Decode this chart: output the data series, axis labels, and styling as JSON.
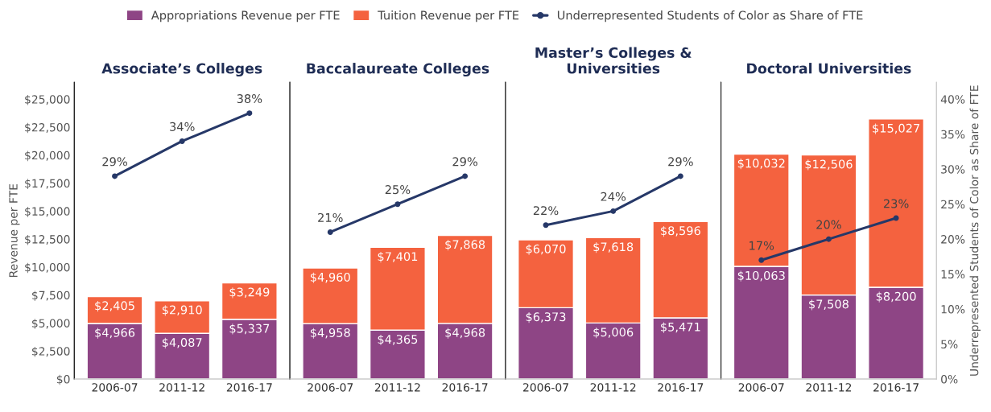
{
  "chart_data": [
    {
      "type": "bar",
      "title": "Associate’s Colleges",
      "categories": [
        "2006-07",
        "2011-12",
        "2016-17"
      ],
      "stacked": true,
      "legend": "top",
      "marker": "circle",
      "ylabel": "Revenue per FTE",
      "tick_labels": [
        "x",
        "y"
      ],
      "ylim": [
        0,
        26500
      ],
      "yticks": [
        {
          "value": 0,
          "label": "$0"
        },
        {
          "value": 2500,
          "label": "$2,500"
        },
        {
          "value": 5000,
          "label": "$5,000"
        },
        {
          "value": 7500,
          "label": "$7,500"
        },
        {
          "value": 10000,
          "label": "$10,000"
        },
        {
          "value": 12500,
          "label": "$12,500"
        },
        {
          "value": 15000,
          "label": "$15,000"
        },
        {
          "value": 17500,
          "label": "$17,500"
        },
        {
          "value": 20000,
          "label": "$20,000"
        },
        {
          "value": 22500,
          "label": "$22,500"
        },
        {
          "value": 25000,
          "label": "$25,000"
        }
      ],
      "y2lim": [
        0,
        42.4
      ],
      "series": [
        {
          "name": "Appropriations Revenue per FTE",
          "color": "#8e4585",
          "values": [
            4966,
            4087,
            5337
          ],
          "value_labels": [
            "$4,966",
            "$4,087",
            "$5,337"
          ]
        },
        {
          "name": "Tuition Revenue per FTE",
          "color": "#f4623f",
          "values": [
            2405,
            2910,
            3249
          ],
          "value_labels": [
            "$2,405",
            "$2,910",
            "$3,249"
          ]
        },
        {
          "name": "Underrepresented Students of Color as Share of FTE",
          "type": "line",
          "axis": "y2",
          "color": "#263868",
          "values": [
            29,
            34,
            38
          ],
          "value_labels": [
            "29%",
            "34%",
            "38%"
          ]
        }
      ]
    },
    {
      "type": "bar",
      "title": "Baccalaureate Colleges",
      "categories": [
        "2006-07",
        "2011-12",
        "2016-17"
      ],
      "stacked": true,
      "marker": "circle",
      "tick_labels": [
        "x"
      ],
      "ylim": [
        0,
        26500
      ],
      "y2lim": [
        0,
        42.4
      ],
      "series": [
        {
          "color": "#8e4585",
          "values": [
            4958,
            4365,
            4968
          ],
          "value_labels": [
            "$4,958",
            "$4,365",
            "$4,968"
          ]
        },
        {
          "color": "#f4623f",
          "values": [
            4960,
            7401,
            7868
          ],
          "value_labels": [
            "$4,960",
            "$7,401",
            "$7,868"
          ]
        },
        {
          "type": "line",
          "axis": "y2",
          "color": "#263868",
          "values": [
            21,
            25,
            29
          ],
          "value_labels": [
            "21%",
            "25%",
            "29%"
          ]
        }
      ]
    },
    {
      "type": "bar",
      "title": "Master’s Colleges &\nUniversities",
      "categories": [
        "2006-07",
        "2011-12",
        "2016-17"
      ],
      "stacked": true,
      "marker": "circle",
      "tick_labels": [
        "x"
      ],
      "ylim": [
        0,
        26500
      ],
      "y2lim": [
        0,
        42.4
      ],
      "series": [
        {
          "color": "#8e4585",
          "values": [
            6373,
            5006,
            5471
          ],
          "value_labels": [
            "$6,373",
            "$5,006",
            "$5,471"
          ]
        },
        {
          "color": "#f4623f",
          "values": [
            6070,
            7618,
            8596
          ],
          "value_labels": [
            "$6,070",
            "$7,618",
            "$8,596"
          ]
        },
        {
          "type": "line",
          "axis": "y2",
          "color": "#263868",
          "values": [
            22,
            24,
            29
          ],
          "value_labels": [
            "22%",
            "24%",
            "29%"
          ]
        }
      ]
    },
    {
      "type": "bar",
      "title": "Doctoral Universities",
      "categories": [
        "2006-07",
        "2011-12",
        "2016-17"
      ],
      "stacked": true,
      "marker": "circle",
      "tick_labels": [
        "x",
        "y2"
      ],
      "y2label": "Underrepresented Students of Color as Share of FTE",
      "ylim": [
        0,
        26500
      ],
      "y2lim": [
        0,
        42.4
      ],
      "y2ticks": [
        {
          "value": 0,
          "label": "0%"
        },
        {
          "value": 5,
          "label": "5%"
        },
        {
          "value": 10,
          "label": "10%"
        },
        {
          "value": 15,
          "label": "15%"
        },
        {
          "value": 20,
          "label": "20%"
        },
        {
          "value": 25,
          "label": "25%"
        },
        {
          "value": 30,
          "label": "30%"
        },
        {
          "value": 35,
          "label": "35%"
        },
        {
          "value": 40,
          "label": "40%"
        }
      ],
      "series": [
        {
          "color": "#8e4585",
          "values": [
            10063,
            7508,
            8200
          ],
          "value_labels": [
            "$10,063",
            "$7,508",
            "$8,200"
          ]
        },
        {
          "color": "#f4623f",
          "values": [
            10032,
            12506,
            15027
          ],
          "value_labels": [
            "$10,032",
            "$12,506",
            "$15,027"
          ]
        },
        {
          "type": "line",
          "axis": "y2",
          "color": "#263868",
          "values": [
            17,
            20,
            23
          ],
          "value_labels": [
            "17%",
            "20%",
            "23%"
          ]
        }
      ]
    }
  ]
}
